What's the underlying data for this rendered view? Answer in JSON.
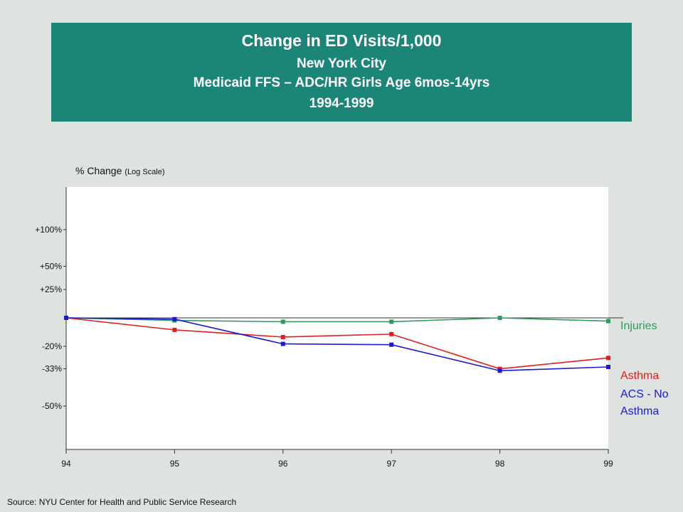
{
  "header": {
    "line1": "Change in ED Visits/1,000",
    "line2": "New York City",
    "line3": "Medicaid FFS – ADC/HR Girls Age 6mos-14yrs",
    "line4": "1994-1999"
  },
  "axis": {
    "ylabel_main": "% Change",
    "ylabel_note": "(Log Scale)"
  },
  "source": "Source:  NYU Center for Health and Public Service Research",
  "chart_data": {
    "type": "line",
    "title": "Change in ED Visits/1,000",
    "ylabel": "% Change (Log Scale)",
    "xlabel": "",
    "y_scale": "log",
    "x": [
      94,
      95,
      96,
      97,
      98,
      99
    ],
    "x_tick_labels": [
      "94",
      "95",
      "96",
      "97",
      "98",
      "99"
    ],
    "y_ticks": [
      {
        "value": 100,
        "label": "+100%"
      },
      {
        "value": 50,
        "label": "+50%"
      },
      {
        "value": 25,
        "label": "+25%"
      },
      {
        "value": -20,
        "label": "-20%"
      },
      {
        "value": -33,
        "label": "-33%"
      },
      {
        "value": -50,
        "label": "-50%"
      }
    ],
    "ylim": [
      -53,
      127
    ],
    "grid": false,
    "series": [
      {
        "name": "Injuries",
        "label_lines": [
          "Injuries"
        ],
        "color": "#2e9a5e",
        "values": [
          0,
          -2,
          -3,
          -3,
          0,
          -2.5
        ]
      },
      {
        "name": "Asthma",
        "label_lines": [
          "Asthma"
        ],
        "color": "#e02020",
        "values": [
          0,
          -9,
          -14,
          -12,
          -33,
          -27
        ]
      },
      {
        "name": "ACS - No Asthma",
        "label_lines": [
          "ACS - No",
          "Asthma"
        ],
        "color": "#1a1ad0",
        "values": [
          0,
          -1,
          -18.5,
          -19,
          -34,
          -32
        ]
      }
    ]
  }
}
